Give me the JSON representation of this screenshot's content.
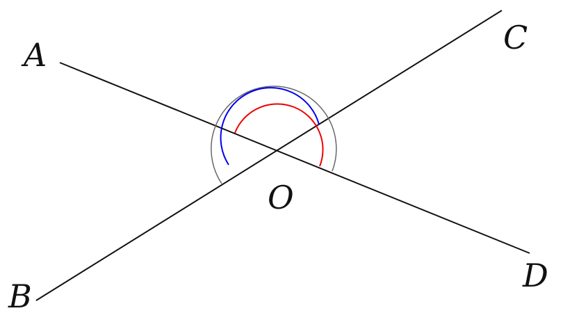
{
  "diagram": {
    "points": {
      "A": {
        "label": "A"
      },
      "B": {
        "label": "B"
      },
      "C": {
        "label": "C"
      },
      "D": {
        "label": "D"
      },
      "O": {
        "label": "O"
      }
    },
    "lines": [
      {
        "name": "line-AD",
        "from": "A",
        "to": "D"
      },
      {
        "name": "line-BC",
        "from": "B",
        "to": "C"
      }
    ],
    "angle_arcs": [
      {
        "name": "arc-gray",
        "color": "#666666"
      },
      {
        "name": "arc-blue",
        "color": "#0000ee"
      },
      {
        "name": "arc-red",
        "color": "#ee0000"
      }
    ],
    "line_color": "#111111"
  }
}
